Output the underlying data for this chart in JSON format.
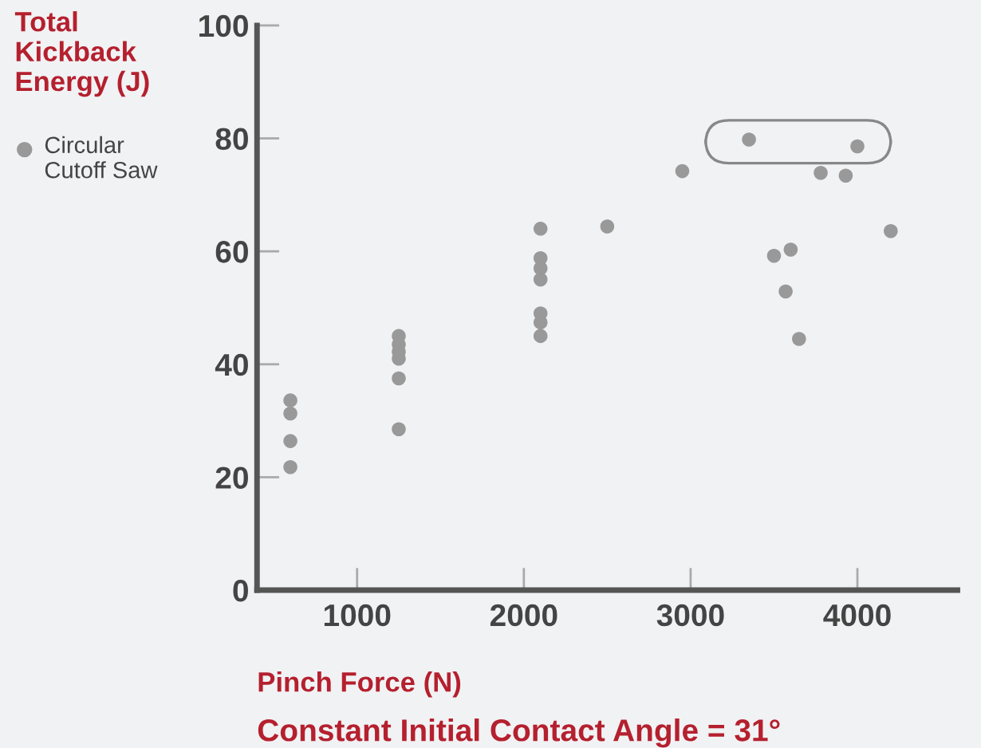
{
  "chart_data": {
    "type": "scatter",
    "ylabel": "Total Kickback Energy (J)",
    "xlabel": "Pinch Force (N)",
    "annotations": [
      "Constant Initial Contact Angle = 31°"
    ],
    "series": [
      {
        "name": "Circular Cutoff Saw",
        "color": "#999999",
        "x": [
          600,
          600,
          600,
          600,
          1250,
          1250,
          1250,
          1250,
          1250,
          1250,
          2100,
          2100,
          2100,
          2100,
          2100,
          2100,
          2100,
          2500,
          2950,
          3350,
          4000,
          3780,
          3930,
          4200,
          3500,
          3600,
          3570,
          3650
        ],
        "values": [
          33.6,
          31.3,
          26.4,
          21.8,
          45,
          43.5,
          42.2,
          41,
          37.5,
          28.5,
          64,
          58.8,
          57,
          55,
          49,
          47.4,
          45,
          64.4,
          74.2,
          79.8,
          78.6,
          73.9,
          73.4,
          63.6,
          59.2,
          60.3,
          52.9,
          44.5
        ]
      }
    ],
    "xlim": [
      400,
      4600
    ],
    "xticks": [
      1000,
      2000,
      3000,
      4000
    ],
    "ylim": [
      0,
      100
    ],
    "yticks": [
      0,
      20,
      40,
      60,
      80,
      100
    ],
    "marker": "circle",
    "legend": "left",
    "grid": false
  }
}
